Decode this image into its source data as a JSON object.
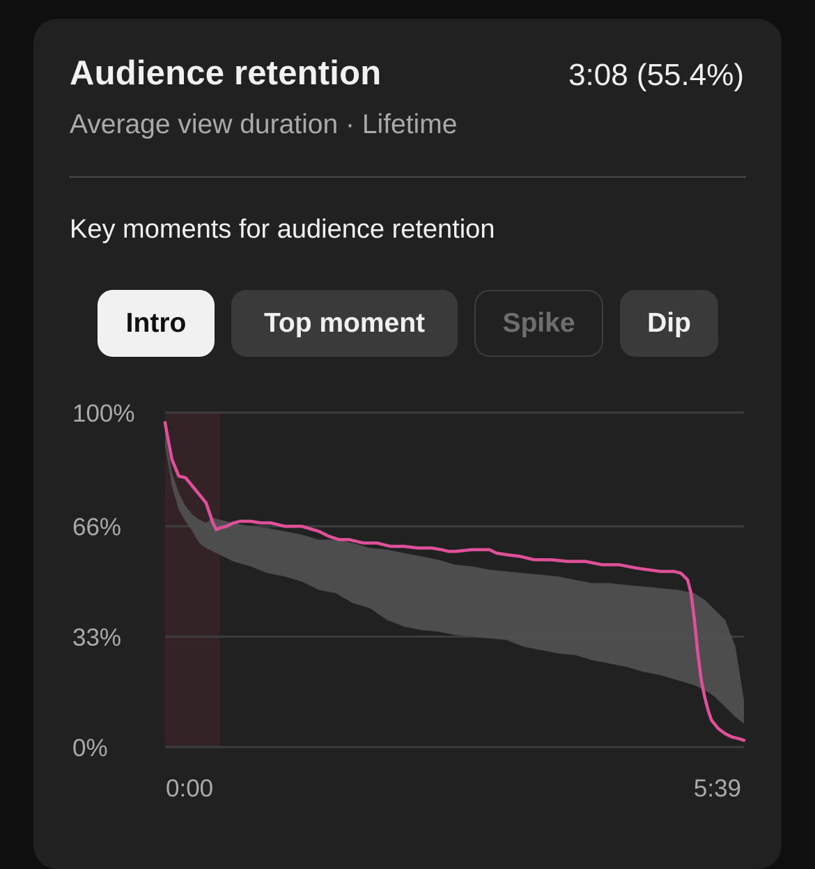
{
  "card": {
    "title": "Audience retention",
    "summary": "3:08 (55.4%)",
    "subtitle": "Average view duration · Lifetime",
    "section_heading": "Key moments for audience retention"
  },
  "chips": [
    {
      "label": "Intro",
      "state": "selected"
    },
    {
      "label": "Top moment",
      "state": "enabled"
    },
    {
      "label": "Spike",
      "state": "disabled"
    },
    {
      "label": "Dip",
      "state": "enabled"
    }
  ],
  "colors": {
    "retention_line": "#e0509a",
    "typical_band": "#505050",
    "intro_highlight": "#332327",
    "gridline": "#3d3d3d"
  },
  "chart_data": {
    "type": "line",
    "x_unit": "seconds",
    "xlim": [
      0,
      339
    ],
    "ylim": [
      0,
      100
    ],
    "y_ticks": [
      {
        "value": 100,
        "label": "100%"
      },
      {
        "value": 66,
        "label": "66%"
      },
      {
        "value": 33,
        "label": "33%"
      },
      {
        "value": 0,
        "label": "0%"
      }
    ],
    "x_ticks": [
      {
        "value": 0,
        "label": "0:00"
      },
      {
        "value": 339,
        "label": "5:39"
      }
    ],
    "highlight_range": [
      0,
      32
    ],
    "series": [
      {
        "role": "this_video",
        "x": [
          0,
          1,
          4,
          8,
          12,
          16,
          20,
          24,
          28,
          30,
          32,
          36,
          40,
          44,
          50,
          56,
          62,
          70,
          80,
          90,
          96,
          102,
          108,
          116,
          124,
          132,
          140,
          148,
          156,
          162,
          166,
          170,
          180,
          190,
          194,
          200,
          208,
          216,
          226,
          236,
          246,
          256,
          266,
          276,
          290,
          294,
          298,
          302,
          306,
          308,
          310,
          312,
          314,
          316,
          318,
          320,
          324,
          328,
          332,
          336,
          339
        ],
        "y": [
          97,
          94,
          86,
          81,
          80.5,
          78,
          75.5,
          73,
          67,
          65,
          65.5,
          66,
          67,
          67.5,
          67.5,
          67,
          67,
          66,
          66,
          64.5,
          63,
          62,
          62,
          61,
          61,
          60,
          60,
          59.5,
          59.5,
          59,
          58.5,
          58.5,
          59,
          59,
          58,
          57.5,
          57,
          56,
          56,
          55.5,
          55.5,
          54.5,
          54.5,
          53.5,
          52.5,
          52.5,
          52.5,
          52,
          50,
          46,
          38,
          28,
          20,
          15,
          11,
          8,
          5.5,
          4,
          3,
          2.5,
          2
        ]
      }
    ],
    "typical_range": {
      "x": [
        0,
        4,
        8,
        12,
        16,
        20,
        24,
        28,
        32,
        40,
        50,
        60,
        70,
        80,
        90,
        100,
        110,
        120,
        130,
        140,
        150,
        160,
        170,
        180,
        190,
        200,
        210,
        220,
        230,
        240,
        250,
        260,
        270,
        280,
        290,
        300,
        310,
        316,
        322,
        328,
        334,
        339
      ],
      "upper": [
        94,
        82,
        76,
        72,
        69.5,
        68,
        67,
        68.5,
        68,
        67,
        66,
        65.5,
        64.5,
        63.5,
        62,
        62,
        61,
        59.5,
        59,
        58,
        57,
        56,
        54.5,
        54,
        53,
        52.5,
        52,
        51.5,
        51,
        50,
        49,
        49,
        48.5,
        48,
        47.5,
        47,
        46,
        44,
        41,
        38,
        30,
        14
      ],
      "lower": [
        90,
        78,
        71,
        67.5,
        64.5,
        61,
        59.5,
        58.5,
        57.5,
        55.5,
        54,
        52,
        51,
        49.5,
        47,
        46,
        43,
        41.5,
        38,
        36,
        35,
        34.5,
        33.5,
        33,
        32.5,
        32,
        30,
        29,
        28,
        27.5,
        26,
        25,
        24,
        22.5,
        21.5,
        20,
        18.5,
        17,
        15,
        12,
        9,
        7
      ]
    }
  }
}
